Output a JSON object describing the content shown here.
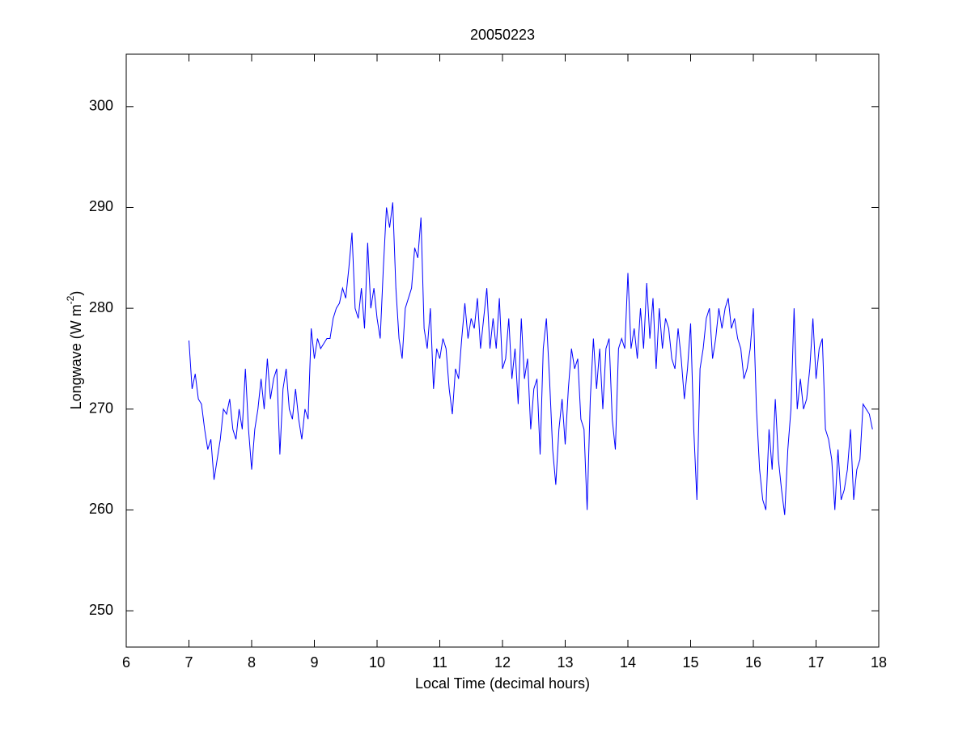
{
  "chart_data": {
    "type": "line",
    "title": "20050223",
    "xlabel": "Local Time (decimal hours)",
    "ylabel_parts": [
      "Longwave (W m",
      "-2",
      ")"
    ],
    "xlim": [
      6,
      18
    ],
    "xticks": [
      6,
      7,
      8,
      9,
      10,
      11,
      12,
      13,
      14,
      15,
      16,
      17,
      18
    ],
    "ylim": [
      246.4,
      305.2
    ],
    "yticks": [
      250,
      260,
      270,
      280,
      290,
      300
    ],
    "grid": false,
    "x": [
      7.0,
      7.05,
      7.1,
      7.15,
      7.2,
      7.25,
      7.3,
      7.35,
      7.4,
      7.45,
      7.5,
      7.55,
      7.6,
      7.65,
      7.7,
      7.75,
      7.8,
      7.85,
      7.9,
      7.95,
      8.0,
      8.05,
      8.1,
      8.15,
      8.2,
      8.25,
      8.3,
      8.35,
      8.4,
      8.45,
      8.5,
      8.55,
      8.6,
      8.65,
      8.7,
      8.75,
      8.8,
      8.85,
      8.9,
      8.95,
      9.0,
      9.05,
      9.1,
      9.15,
      9.2,
      9.25,
      9.3,
      9.35,
      9.4,
      9.45,
      9.5,
      9.55,
      9.6,
      9.65,
      9.7,
      9.75,
      9.8,
      9.85,
      9.9,
      9.95,
      10.0,
      10.05,
      10.1,
      10.15,
      10.2,
      10.25,
      10.3,
      10.35,
      10.4,
      10.45,
      10.5,
      10.55,
      10.6,
      10.65,
      10.7,
      10.75,
      10.8,
      10.85,
      10.9,
      10.95,
      11.0,
      11.05,
      11.1,
      11.15,
      11.2,
      11.25,
      11.3,
      11.35,
      11.4,
      11.45,
      11.5,
      11.55,
      11.6,
      11.65,
      11.7,
      11.75,
      11.8,
      11.85,
      11.9,
      11.95,
      12.0,
      12.05,
      12.1,
      12.15,
      12.2,
      12.25,
      12.3,
      12.35,
      12.4,
      12.45,
      12.5,
      12.55,
      12.6,
      12.65,
      12.7,
      12.75,
      12.8,
      12.85,
      12.9,
      12.95,
      13.0,
      13.05,
      13.1,
      13.15,
      13.2,
      13.25,
      13.3,
      13.35,
      13.4,
      13.45,
      13.5,
      13.55,
      13.6,
      13.65,
      13.7,
      13.75,
      13.8,
      13.85,
      13.9,
      13.95,
      14.0,
      14.05,
      14.1,
      14.15,
      14.2,
      14.25,
      14.3,
      14.35,
      14.4,
      14.45,
      14.5,
      14.55,
      14.6,
      14.65,
      14.7,
      14.75,
      14.8,
      14.85,
      14.9,
      14.95,
      15.0,
      15.05,
      15.1,
      15.15,
      15.2,
      15.25,
      15.3,
      15.35,
      15.4,
      15.45,
      15.5,
      15.55,
      15.6,
      15.65,
      15.7,
      15.75,
      15.8,
      15.85,
      15.9,
      15.95,
      16.0,
      16.05,
      16.1,
      16.15,
      16.2,
      16.25,
      16.3,
      16.35,
      16.4,
      16.45,
      16.5,
      16.55,
      16.6,
      16.65,
      16.7,
      16.75,
      16.8,
      16.85,
      16.9,
      16.95,
      17.0,
      17.05,
      17.1,
      17.15,
      17.2,
      17.25,
      17.3,
      17.35,
      17.4,
      17.45,
      17.5,
      17.55,
      17.6,
      17.65,
      17.7,
      17.75,
      17.8,
      17.85,
      17.9
    ],
    "series": [
      {
        "color": "#0000ff",
        "values": [
          276.8,
          272,
          273.5,
          271,
          270.5,
          268,
          266,
          267,
          263,
          265,
          267,
          270,
          269.5,
          271,
          268,
          267,
          270,
          268,
          274,
          268,
          264,
          268,
          270,
          273,
          270,
          275,
          271,
          273,
          274,
          265.5,
          272,
          274,
          270,
          269,
          272,
          269,
          267,
          270,
          269,
          278,
          275,
          277,
          276,
          276.5,
          277,
          277,
          279,
          280,
          280.5,
          282,
          281,
          284,
          287.5,
          280,
          279,
          282,
          278,
          286.5,
          280,
          282,
          279,
          277,
          284,
          290,
          288,
          290.5,
          282,
          277,
          275,
          280,
          281,
          282,
          286,
          285,
          289,
          278,
          276,
          280,
          272,
          276,
          275,
          277,
          276,
          272,
          269.5,
          274,
          273,
          277,
          280.5,
          277,
          279,
          278,
          281,
          276,
          279,
          282,
          276,
          279,
          276,
          281,
          274,
          275,
          279,
          273,
          276,
          270.5,
          279,
          273,
          275,
          268,
          272,
          273,
          265.5,
          276,
          279,
          273,
          266,
          262.5,
          268,
          271,
          266.5,
          272,
          276,
          274,
          275,
          269,
          268,
          260,
          271,
          277,
          272,
          276,
          270,
          276,
          277,
          269,
          266,
          276,
          277,
          276,
          283.5,
          276,
          278,
          275,
          280,
          276,
          282.5,
          277,
          281,
          274,
          280,
          276,
          279,
          278,
          275,
          274,
          278,
          275,
          271,
          274,
          278.5,
          268,
          261,
          274,
          276,
          279,
          280,
          275,
          277,
          280,
          278,
          280,
          281,
          278,
          279,
          277,
          276,
          273,
          274,
          276,
          280,
          270,
          264,
          261,
          260,
          268,
          264,
          271,
          265,
          262,
          259.5,
          266,
          270,
          280,
          270,
          273,
          270,
          271,
          274,
          279,
          273,
          276,
          277,
          268,
          267,
          265,
          260,
          266,
          261,
          262,
          264,
          268,
          261,
          264,
          265,
          270.5,
          270,
          269.5,
          268
        ]
      }
    ]
  }
}
